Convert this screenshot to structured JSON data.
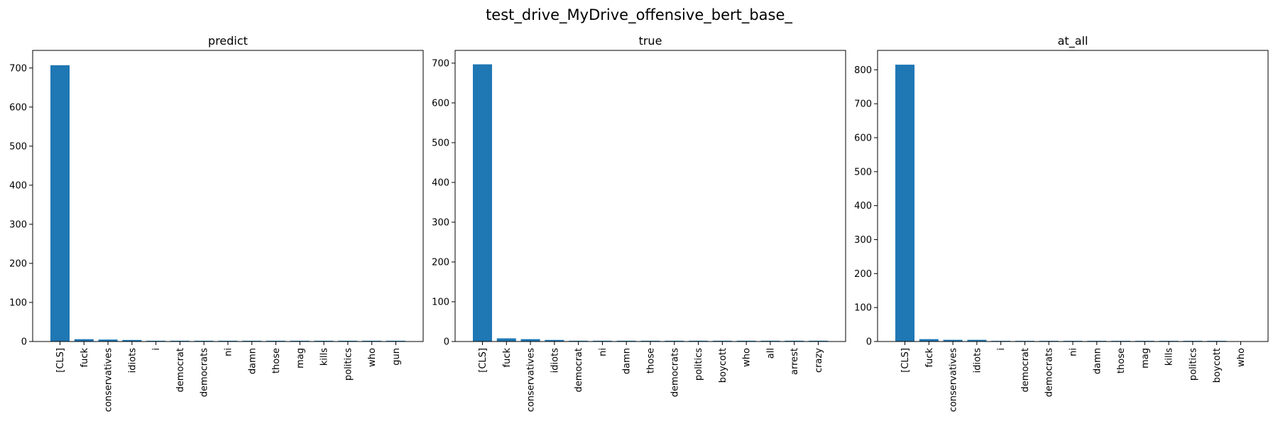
{
  "suptitle": "test_drive_MyDrive_offensive_bert_base_",
  "bar_color": "#1f77b4",
  "chart_data": [
    {
      "type": "bar",
      "title": "predict",
      "categories": [
        "[CLS]",
        "fuck",
        "conservatives",
        "idiots",
        "i",
        "democrat",
        "democrats",
        "ni",
        "damn",
        "those",
        "mag",
        "kills",
        "politics",
        "who",
        "gun"
      ],
      "values": [
        707,
        6,
        5,
        4,
        2,
        2,
        2,
        2,
        2,
        2,
        2,
        2,
        2,
        2,
        2
      ],
      "ylim": [
        0,
        745
      ],
      "yticks": [
        0,
        100,
        200,
        300,
        400,
        500,
        600,
        700
      ],
      "xlabel": "",
      "ylabel": ""
    },
    {
      "type": "bar",
      "title": "true",
      "categories": [
        "[CLS]",
        "fuck",
        "conservatives",
        "idiots",
        "democrat",
        "ni",
        "damn",
        "those",
        "democrats",
        "politics",
        "boycott",
        "who",
        "all",
        "arrest",
        "crazy"
      ],
      "values": [
        697,
        8,
        6,
        4,
        2,
        2,
        2,
        2,
        2,
        2,
        2,
        2,
        2,
        2,
        2
      ],
      "ylim": [
        0,
        732
      ],
      "yticks": [
        0,
        100,
        200,
        300,
        400,
        500,
        600,
        700
      ],
      "xlabel": "",
      "ylabel": ""
    },
    {
      "type": "bar",
      "title": "at_all",
      "categories": [
        "[CLS]",
        "fuck",
        "conservatives",
        "idiots",
        "i",
        "democrat",
        "democrats",
        "ni",
        "damn",
        "those",
        "mag",
        "kills",
        "politics",
        "boycott",
        "who"
      ],
      "values": [
        815,
        7,
        5,
        5,
        2,
        2,
        2,
        2,
        2,
        2,
        2,
        2,
        2,
        2,
        1
      ],
      "ylim": [
        0,
        857
      ],
      "yticks": [
        0,
        100,
        200,
        300,
        400,
        500,
        600,
        700,
        800
      ],
      "xlabel": "",
      "ylabel": ""
    }
  ]
}
